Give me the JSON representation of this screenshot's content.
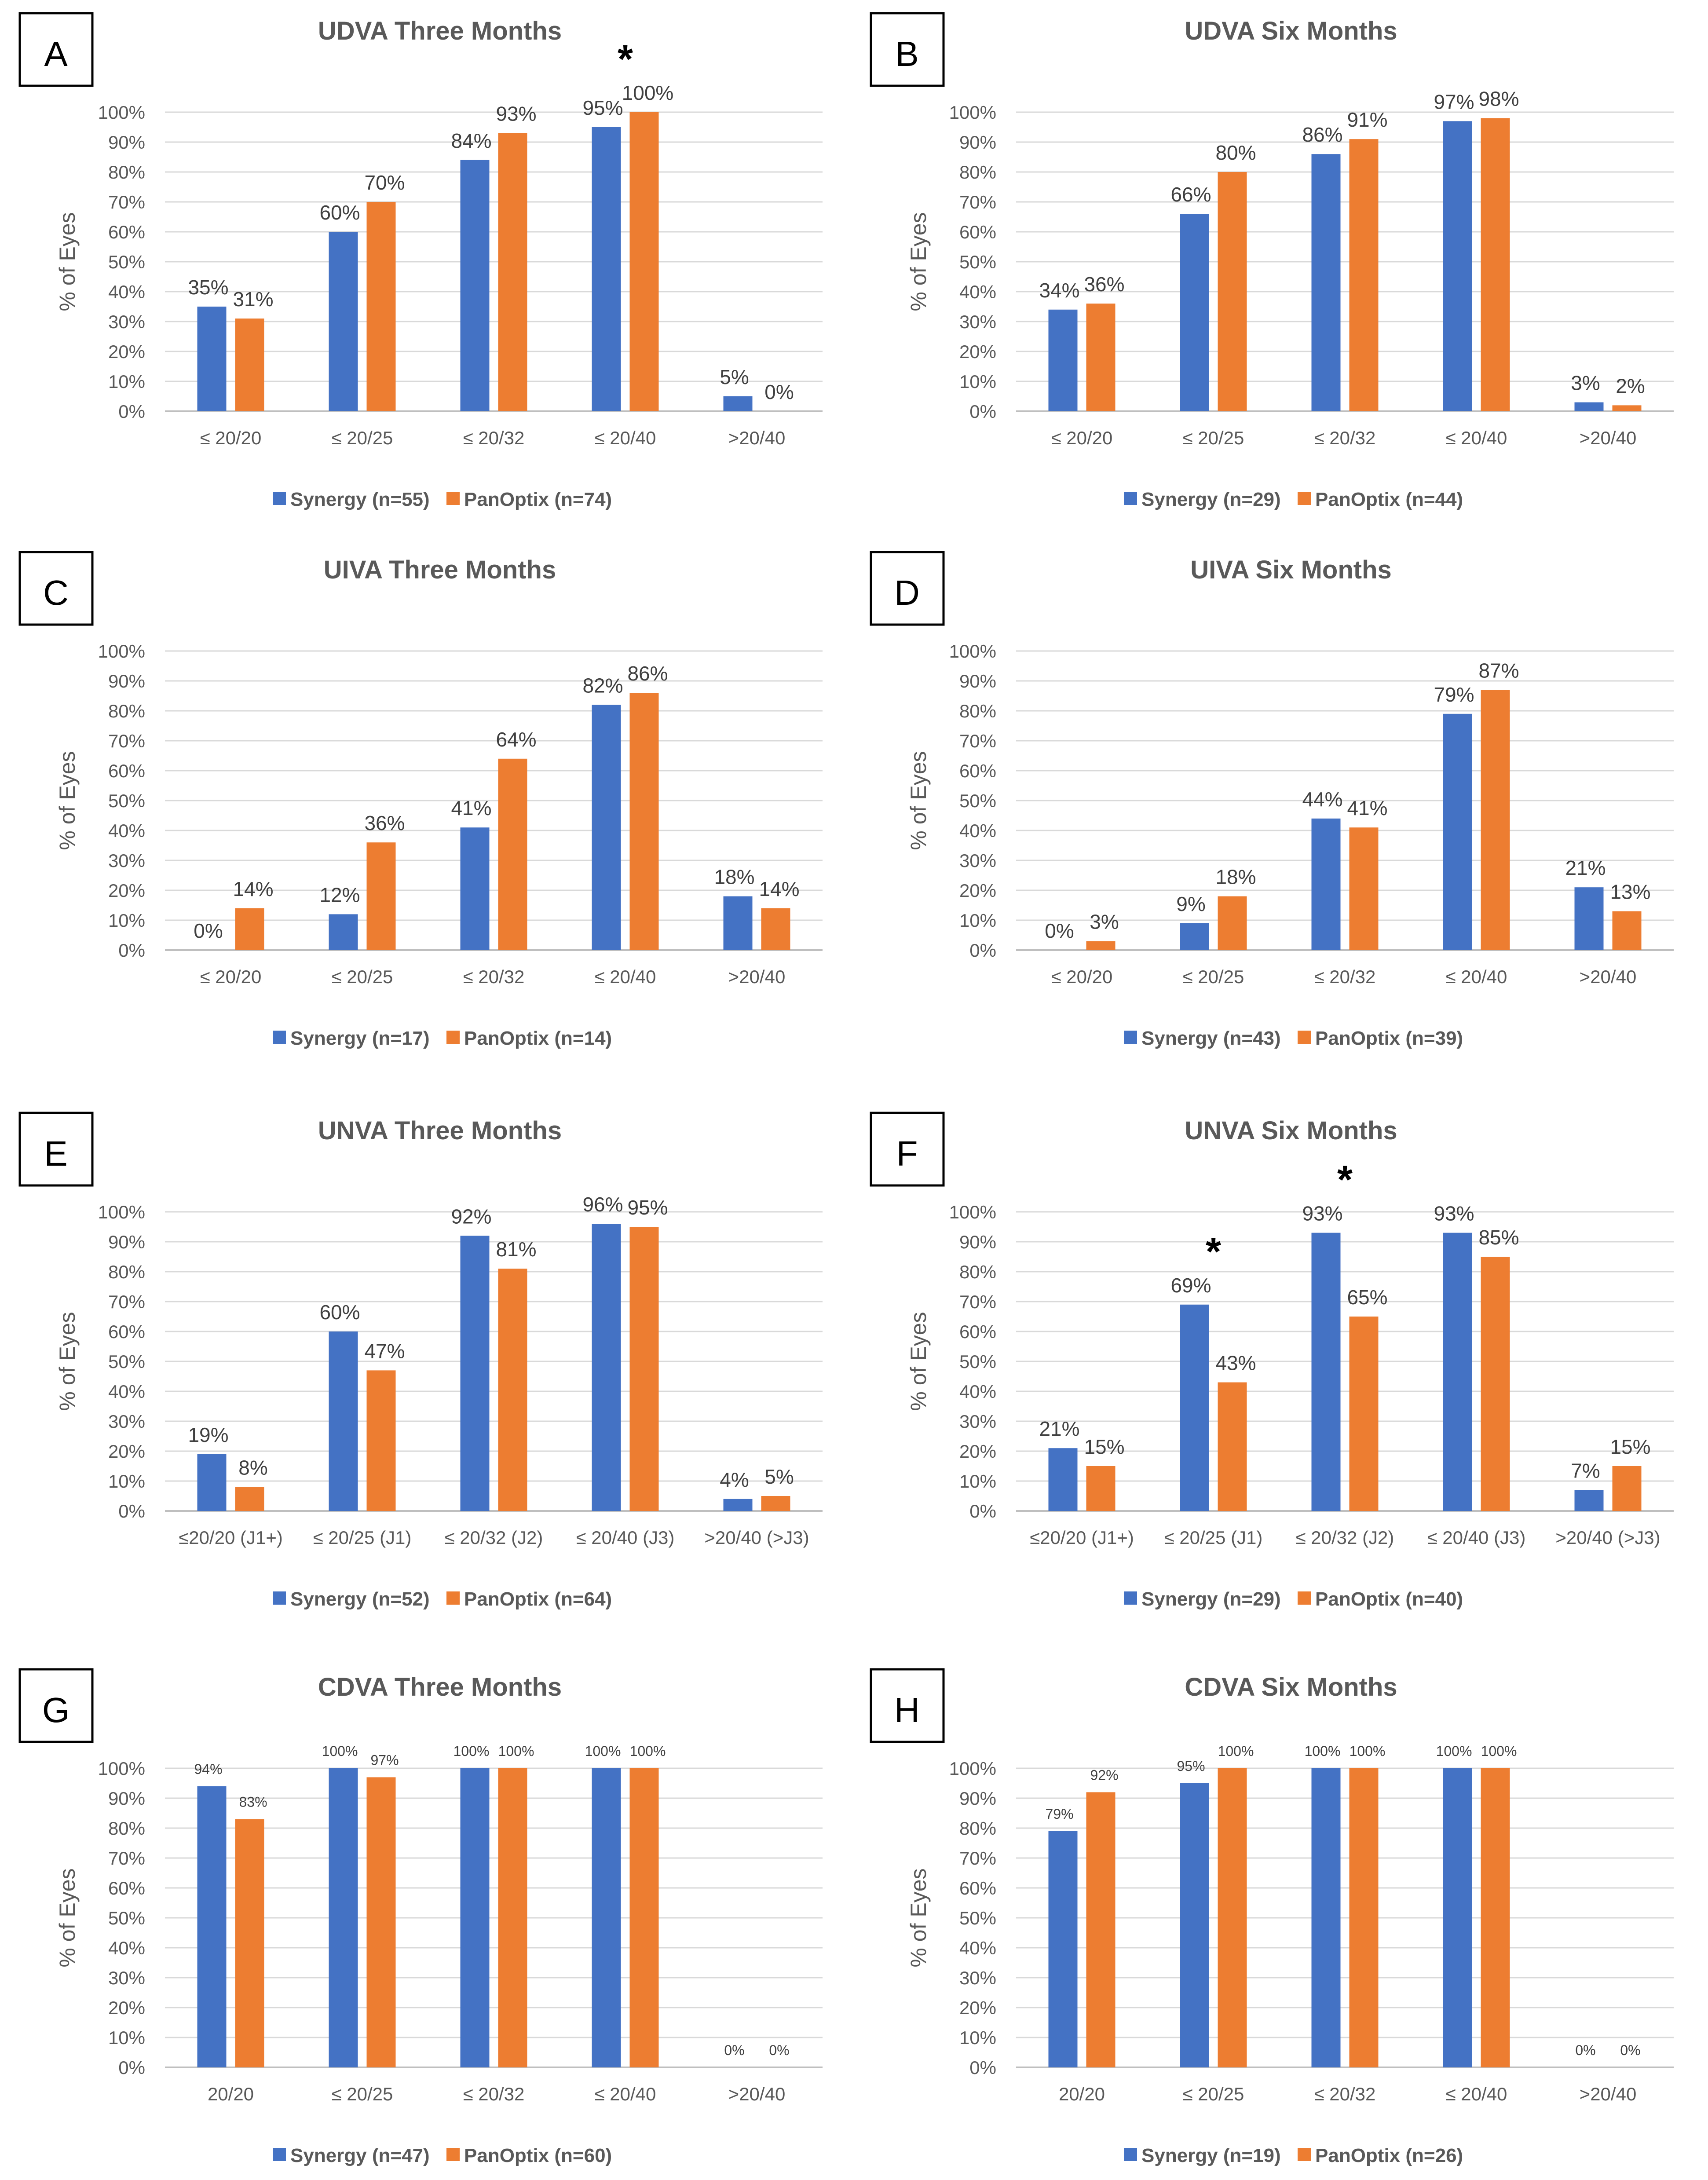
{
  "legend_colors": {
    "synergy": "#4472C4",
    "panoptix": "#ED7D31"
  },
  "chart_data": [
    {
      "panel": "A",
      "type": "bar",
      "title": "UDVA Three Months",
      "ylabel": "% of Eyes",
      "yticks": [
        "0%",
        "10%",
        "20%",
        "30%",
        "40%",
        "50%",
        "60%",
        "70%",
        "80%",
        "90%",
        "100%"
      ],
      "ylim": [
        0,
        100
      ],
      "categories": [
        "≤ 20/20",
        "≤ 20/25",
        "≤ 20/32",
        "≤ 20/40",
        ">20/40"
      ],
      "series": [
        {
          "name": "Synergy (n=55)",
          "values": [
            35,
            60,
            84,
            95,
            5
          ],
          "labels": [
            "35%",
            "60%",
            "84%",
            "95%",
            "5%"
          ]
        },
        {
          "name": "PanOptix (n=74)",
          "values": [
            31,
            70,
            93,
            100,
            0
          ],
          "labels": [
            "31%",
            "70%",
            "93%",
            "100%",
            "0%"
          ]
        }
      ],
      "significance": [
        3
      ],
      "grid": true,
      "legend": "bottom"
    },
    {
      "panel": "B",
      "type": "bar",
      "title": "UDVA Six Months",
      "ylabel": "% of Eyes",
      "yticks": [
        "0%",
        "10%",
        "20%",
        "30%",
        "40%",
        "50%",
        "60%",
        "70%",
        "80%",
        "90%",
        "100%"
      ],
      "ylim": [
        0,
        100
      ],
      "categories": [
        "≤ 20/20",
        "≤ 20/25",
        "≤ 20/32",
        "≤ 20/40",
        ">20/40"
      ],
      "series": [
        {
          "name": "Synergy (n=29)",
          "values": [
            34,
            66,
            86,
            97,
            3
          ],
          "labels": [
            "34%",
            "66%",
            "86%",
            "97%",
            "3%"
          ]
        },
        {
          "name": "PanOptix (n=44)",
          "values": [
            36,
            80,
            91,
            98,
            2
          ],
          "labels": [
            "36%",
            "80%",
            "91%",
            "98%",
            "2%"
          ]
        }
      ],
      "significance": [],
      "grid": true,
      "legend": "bottom"
    },
    {
      "panel": "C",
      "type": "bar",
      "title": "UIVA Three Months",
      "ylabel": "% of Eyes",
      "yticks": [
        "0%",
        "10%",
        "20%",
        "30%",
        "40%",
        "50%",
        "60%",
        "70%",
        "80%",
        "90%",
        "100%"
      ],
      "ylim": [
        0,
        100
      ],
      "categories": [
        "≤ 20/20",
        "≤ 20/25",
        "≤ 20/32",
        "≤ 20/40",
        ">20/40"
      ],
      "series": [
        {
          "name": "Synergy (n=17)",
          "values": [
            0,
            12,
            41,
            82,
            18
          ],
          "labels": [
            "0%",
            "12%",
            "41%",
            "82%",
            "18%"
          ]
        },
        {
          "name": "PanOptix (n=14)",
          "values": [
            14,
            36,
            64,
            86,
            14
          ],
          "labels": [
            "14%",
            "36%",
            "64%",
            "86%",
            "14%"
          ]
        }
      ],
      "significance": [],
      "grid": true,
      "legend": "bottom"
    },
    {
      "panel": "D",
      "type": "bar",
      "title": "UIVA Six Months",
      "ylabel": "% of Eyes",
      "yticks": [
        "0%",
        "10%",
        "20%",
        "30%",
        "40%",
        "50%",
        "60%",
        "70%",
        "80%",
        "90%",
        "100%"
      ],
      "ylim": [
        0,
        100
      ],
      "categories": [
        "≤ 20/20",
        "≤ 20/25",
        "≤ 20/32",
        "≤ 20/40",
        ">20/40"
      ],
      "series": [
        {
          "name": "Synergy (n=43)",
          "values": [
            0,
            9,
            44,
            79,
            21
          ],
          "labels": [
            "0%",
            "9%",
            "44%",
            "79%",
            "21%"
          ]
        },
        {
          "name": "PanOptix (n=39)",
          "values": [
            3,
            18,
            41,
            87,
            13
          ],
          "labels": [
            "3%",
            "18%",
            "41%",
            "87%",
            "13%"
          ]
        }
      ],
      "significance": [],
      "grid": true,
      "legend": "bottom"
    },
    {
      "panel": "E",
      "type": "bar",
      "title": "UNVA Three Months",
      "ylabel": "% of Eyes",
      "yticks": [
        "0%",
        "10%",
        "20%",
        "30%",
        "40%",
        "50%",
        "60%",
        "70%",
        "80%",
        "90%",
        "100%"
      ],
      "ylim": [
        0,
        100
      ],
      "categories": [
        "≤20/20 (J1+)",
        "≤ 20/25 (J1)",
        "≤ 20/32 (J2)",
        "≤ 20/40 (J3)",
        ">20/40 (>J3)"
      ],
      "series": [
        {
          "name": "Synergy (n=52)",
          "values": [
            19,
            60,
            92,
            96,
            4
          ],
          "labels": [
            "19%",
            "60%",
            "92%",
            "96%",
            "4%"
          ]
        },
        {
          "name": "PanOptix (n=64)",
          "values": [
            8,
            47,
            81,
            95,
            5
          ],
          "labels": [
            "8%",
            "47%",
            "81%",
            "95%",
            "5%"
          ]
        }
      ],
      "significance": [],
      "grid": true,
      "legend": "bottom"
    },
    {
      "panel": "F",
      "type": "bar",
      "title": "UNVA Six Months",
      "ylabel": "% of Eyes",
      "yticks": [
        "0%",
        "10%",
        "20%",
        "30%",
        "40%",
        "50%",
        "60%",
        "70%",
        "80%",
        "90%",
        "100%"
      ],
      "ylim": [
        0,
        100
      ],
      "categories": [
        "≤20/20 (J1+)",
        "≤ 20/25 (J1)",
        "≤ 20/32 (J2)",
        "≤ 20/40 (J3)",
        ">20/40 (>J3)"
      ],
      "series": [
        {
          "name": "Synergy (n=29)",
          "values": [
            21,
            69,
            93,
            93,
            7
          ],
          "labels": [
            "21%",
            "69%",
            "93%",
            "93%",
            "7%"
          ]
        },
        {
          "name": "PanOptix (n=40)",
          "values": [
            15,
            43,
            65,
            85,
            15
          ],
          "labels": [
            "15%",
            "43%",
            "65%",
            "85%",
            "15%"
          ]
        }
      ],
      "significance": [
        1,
        2
      ],
      "grid": true,
      "legend": "bottom"
    },
    {
      "panel": "G",
      "type": "bar",
      "title": "CDVA Three Months",
      "ylabel": "% of Eyes",
      "yticks": [
        "0%",
        "10%",
        "20%",
        "30%",
        "40%",
        "50%",
        "60%",
        "70%",
        "80%",
        "90%",
        "100%"
      ],
      "ylim": [
        0,
        100
      ],
      "categories": [
        "20/20",
        "≤ 20/25",
        "≤ 20/32",
        "≤ 20/40",
        ">20/40"
      ],
      "series": [
        {
          "name": "Synergy (n=47)",
          "values": [
            94,
            100,
            100,
            100,
            0
          ],
          "labels": [
            "94%",
            "100%",
            "100%",
            "100%",
            "0%"
          ]
        },
        {
          "name": "PanOptix (n=60)",
          "values": [
            83,
            97,
            100,
            100,
            0
          ],
          "labels": [
            "83%",
            "97%",
            "100%",
            "100%",
            "0%"
          ]
        }
      ],
      "significance": [],
      "grid": true,
      "legend": "bottom"
    },
    {
      "panel": "H",
      "type": "bar",
      "title": "CDVA Six Months",
      "ylabel": "% of Eyes",
      "yticks": [
        "0%",
        "10%",
        "20%",
        "30%",
        "40%",
        "50%",
        "60%",
        "70%",
        "80%",
        "90%",
        "100%"
      ],
      "ylim": [
        0,
        100
      ],
      "categories": [
        "20/20",
        "≤ 20/25",
        "≤ 20/32",
        "≤ 20/40",
        ">20/40"
      ],
      "series": [
        {
          "name": "Synergy (n=19)",
          "values": [
            79,
            95,
            100,
            100,
            0
          ],
          "labels": [
            "79%",
            "95%",
            "100%",
            "100%",
            "0%"
          ]
        },
        {
          "name": "PanOptix (n=26)",
          "values": [
            92,
            100,
            100,
            100,
            0
          ],
          "labels": [
            "92%",
            "100%",
            "100%",
            "100%",
            "0%"
          ]
        }
      ],
      "significance": [],
      "grid": true,
      "legend": "bottom"
    }
  ]
}
